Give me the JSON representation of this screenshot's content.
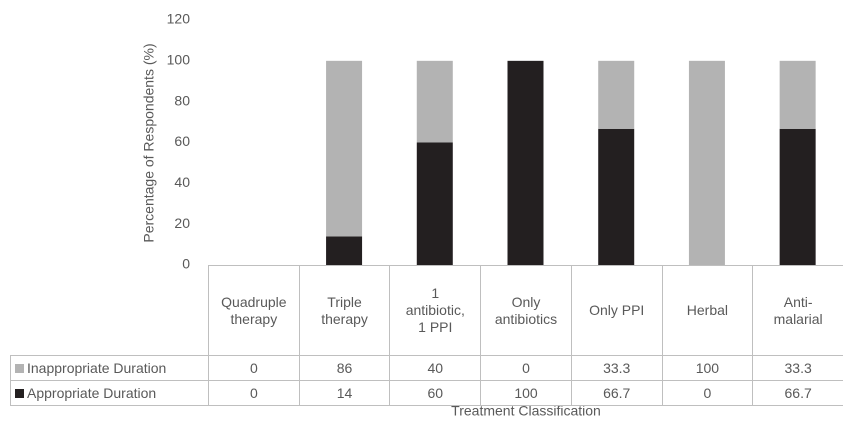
{
  "chart_data": {
    "type": "stacked_bar",
    "y_label": "Percentage of Respondents (%)",
    "x_label": "Treatment Classification",
    "categories": [
      "Quadruple therapy",
      "Triple therapy",
      "1 antibiotic, 1 PPI",
      "Only antibiotics",
      "Only PPI",
      "Herbal",
      "Anti-malarial"
    ],
    "series": [
      {
        "name": "Inappropriate Duration",
        "color": "#b3b3b3",
        "values": [
          0,
          86,
          40,
          0,
          33.3,
          100,
          33.3
        ]
      },
      {
        "name": "Appropriate Duration",
        "color": "#231f20",
        "values": [
          0,
          14,
          60,
          100,
          66.7,
          0,
          66.7
        ]
      }
    ],
    "stack_order": [
      "Appropriate Duration",
      "Inappropriate Duration"
    ],
    "ylim": [
      0,
      120
    ],
    "yticks": [
      0,
      20,
      40,
      60,
      80,
      100,
      120
    ],
    "grid": false
  }
}
